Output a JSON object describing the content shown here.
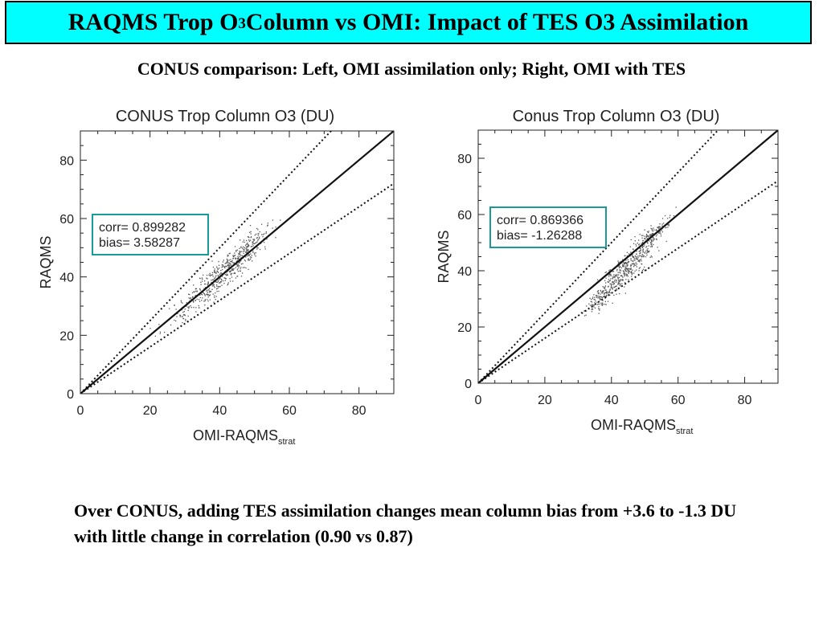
{
  "slide": {
    "title_pre": "RAQMS Trop O",
    "title_sub": "3",
    "title_post": " Column vs OMI: Impact of TES O3 Assimilation",
    "subtitle": "CONUS comparison: Left, OMI assimilation only; Right, OMI with TES",
    "conclusion": "Over CONUS, adding TES assimilation changes mean column bias from +3.6 to -1.3 DU with little change in correlation (0.90 vs 0.87)"
  },
  "colors": {
    "title_bg": "#00ffff",
    "stats_box_border": "#1a9a9a",
    "points": "#555555"
  },
  "chart_data": [
    {
      "type": "scatter",
      "title": "CONUS Trop Column O3 (DU)",
      "xlabel": "OMI-RAQMS",
      "xlabel_sub": "strat",
      "ylabel": "RAQMS",
      "xlim": [
        0,
        90
      ],
      "ylim": [
        0,
        90
      ],
      "xticks": [
        "0",
        "20",
        "40",
        "60",
        "80"
      ],
      "yticks": [
        "0",
        "20",
        "40",
        "60",
        "80"
      ],
      "reference_lines": [
        {
          "style": "solid",
          "slope": 1.0
        },
        {
          "style": "dotted",
          "slope": 1.25
        },
        {
          "style": "dotted",
          "slope": 0.8
        }
      ],
      "stats": {
        "corr": "corr= 0.899282",
        "bias": "bias= 3.58287"
      },
      "scatter_clusters": [
        {
          "x_center": 34,
          "y_center": 33,
          "x_spread": 5,
          "y_spread": 5,
          "n": 150
        },
        {
          "x_center": 42,
          "y_center": 43,
          "x_spread": 5,
          "y_spread": 5,
          "n": 320
        },
        {
          "x_center": 48,
          "y_center": 51,
          "x_spread": 3,
          "y_spread": 4,
          "n": 110
        }
      ]
    },
    {
      "type": "scatter",
      "title": "Conus Trop Column O3 (DU)",
      "xlabel": "OMI-RAQMS",
      "xlabel_sub": "strat",
      "ylabel": "RAQMS",
      "xlim": [
        0,
        90
      ],
      "ylim": [
        0,
        90
      ],
      "xticks": [
        "0",
        "20",
        "40",
        "60",
        "80"
      ],
      "yticks": [
        "0",
        "20",
        "40",
        "60",
        "80"
      ],
      "reference_lines": [
        {
          "style": "solid",
          "slope": 1.0
        },
        {
          "style": "dotted",
          "slope": 1.25
        },
        {
          "style": "dotted",
          "slope": 0.8
        }
      ],
      "stats": {
        "corr": "corr= 0.869366",
        "bias": "bias= -1.26288"
      },
      "scatter_clusters": [
        {
          "x_center": 37,
          "y_center": 31,
          "x_spread": 3,
          "y_spread": 4,
          "n": 150
        },
        {
          "x_center": 45,
          "y_center": 42,
          "x_spread": 4,
          "y_spread": 5,
          "n": 330
        },
        {
          "x_center": 52,
          "y_center": 53,
          "x_spread": 3,
          "y_spread": 3,
          "n": 140
        }
      ]
    }
  ]
}
